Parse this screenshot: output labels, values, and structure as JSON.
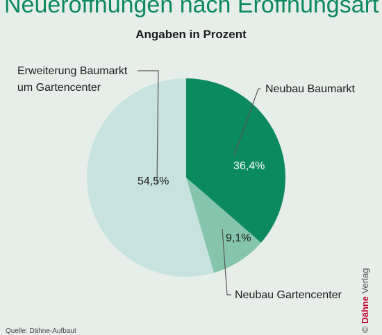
{
  "header": {
    "title": "Neueröffnungen nach Eröffnungsart",
    "subtitle": "Angaben in Prozent"
  },
  "credit": {
    "symbol": "©",
    "brand": "Dähne",
    "rest": " Verlag"
  },
  "source_text": "Quelle: Dähne-Aufbaut",
  "colors": {
    "background": "#e7eee9",
    "title": "#0b8a5f"
  },
  "chart_data": {
    "type": "pie",
    "title": "Angaben in Prozent",
    "unit": "%",
    "slices": [
      {
        "label": "Neubau Baumarkt",
        "value": 36.4,
        "value_label": "36,4%",
        "color": "#0b8a5f",
        "text_color": "#ffffff"
      },
      {
        "label": "Neubau Gartencenter",
        "value": 9.1,
        "value_label": "9,1%",
        "color": "#86c5ad",
        "text_color": "#1a1a1a"
      },
      {
        "label": "Erweiterung Baumarkt um Gartencenter",
        "label_lines": [
          "Erweiterung Baumarkt",
          "um Gartencenter"
        ],
        "value": 54.5,
        "value_label": "54,5%",
        "color": "#c8e3df",
        "text_color": "#1a1a1a"
      }
    ]
  }
}
